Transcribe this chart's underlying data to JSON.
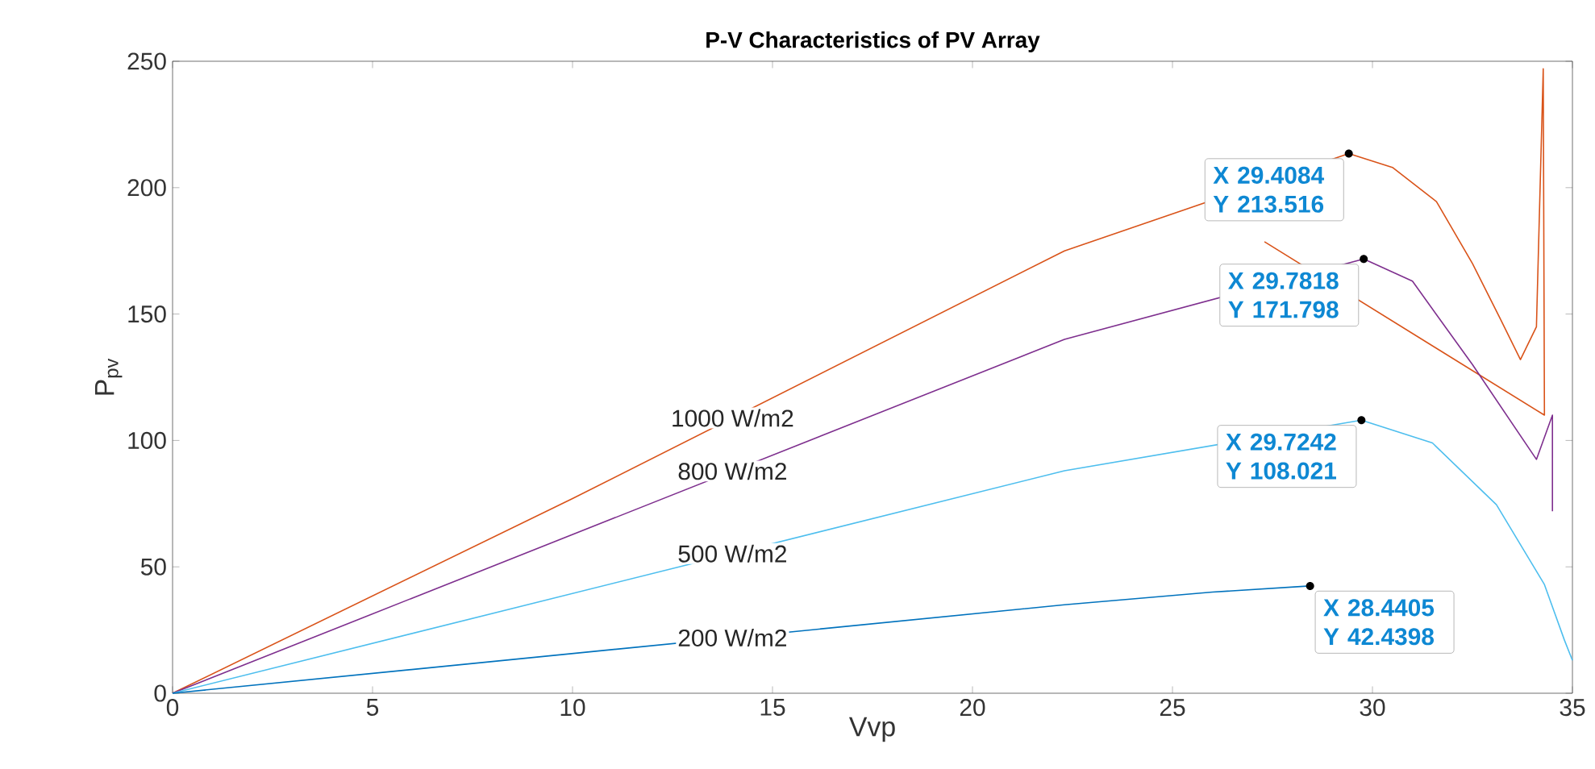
{
  "chart_data": {
    "type": "line",
    "title": "P-V Characteristics of PV Array",
    "xlabel": "Vvp",
    "ylabel": "P$_{pv}$",
    "xlim": [
      0,
      35
    ],
    "ylim": [
      0,
      250
    ],
    "xticks": [
      0,
      5,
      10,
      15,
      20,
      25,
      30,
      35
    ],
    "yticks": [
      0,
      50,
      100,
      150,
      200,
      250
    ],
    "grid": false,
    "legend": false,
    "line_style": "solid",
    "marker": "none",
    "series": [
      {
        "name": "1000 W/m2",
        "color": "#d95319",
        "x": [
          0,
          10,
          22.3,
          29.4084,
          30.5,
          31.6,
          32.5,
          33.2,
          33.7,
          34.1,
          34.27,
          34.3,
          27.3
        ],
        "values": [
          0,
          77,
          175,
          213.516,
          208,
          194.5,
          170,
          148,
          132,
          145,
          247,
          110,
          178.6
        ]
      },
      {
        "name": "800 W/m2",
        "color": "#7e2f8e",
        "x": [
          0,
          22.3,
          29.7818,
          31,
          32.5,
          34.1,
          34.5,
          34.5
        ],
        "values": [
          0,
          140,
          171.798,
          163,
          130,
          92.5,
          110,
          72
        ]
      },
      {
        "name": "500 W/m2",
        "color": "#4dbeee",
        "x": [
          0,
          22.3,
          29.7242,
          31.5,
          33.1,
          34.3,
          34.8,
          35
        ],
        "values": [
          0,
          88,
          108.021,
          99,
          74.6,
          43,
          21,
          13
        ]
      },
      {
        "name": "200 W/m2",
        "color": "#0072bd",
        "x": [
          0,
          22.3,
          26,
          28.4405
        ],
        "values": [
          0,
          35,
          40,
          42.4398
        ]
      }
    ],
    "annotations": [
      {
        "text": "X 29.4084 Y 213.516",
        "x": 29.4084,
        "y": 213.516
      },
      {
        "text": "X 29.7818 Y 171.798",
        "x": 29.7818,
        "y": 171.798
      },
      {
        "text": "X 29.7242 Y 108.021",
        "x": 29.7242,
        "y": 108.021
      },
      {
        "text": "X 28.4405 Y 42.4398",
        "x": 28.4405,
        "y": 42.4398
      }
    ]
  }
}
